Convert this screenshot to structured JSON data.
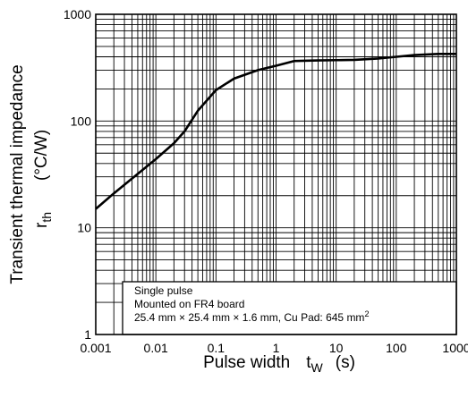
{
  "chart_data": {
    "type": "line",
    "title": "",
    "xscale": "log",
    "yscale": "log",
    "xlim": [
      0.001,
      1000
    ],
    "ylim": [
      1,
      1000
    ],
    "grid": true,
    "xlabel": {
      "main": "Pulse width",
      "symbol": "t",
      "subscript": "W",
      "unit": "(s)"
    },
    "ylabel": {
      "main": "Transient thermal impedance",
      "symbol": "r",
      "subscript": "th",
      "unit": "(°C/W)"
    },
    "x_ticks": [
      {
        "value": 0.001,
        "label": "0.001"
      },
      {
        "value": 0.01,
        "label": "0.01"
      },
      {
        "value": 0.1,
        "label": "0.1"
      },
      {
        "value": 1,
        "label": "1"
      },
      {
        "value": 10,
        "label": "10"
      },
      {
        "value": 100,
        "label": "100"
      },
      {
        "value": 1000,
        "label": "1000"
      }
    ],
    "y_ticks": [
      {
        "value": 1,
        "label": "1"
      },
      {
        "value": 10,
        "label": "10"
      },
      {
        "value": 100,
        "label": "100"
      },
      {
        "value": 1000,
        "label": "1000"
      }
    ],
    "series": [
      {
        "x": [
          0.001,
          0.002,
          0.005,
          0.01,
          0.02,
          0.03,
          0.05,
          0.1,
          0.2,
          0.5,
          1,
          2,
          5,
          10,
          20,
          50,
          100,
          200,
          500,
          1000
        ],
        "y": [
          15,
          21,
          32,
          44,
          62,
          80,
          125,
          195,
          250,
          300,
          330,
          365,
          370,
          372,
          374,
          385,
          400,
          415,
          425,
          425
        ]
      }
    ],
    "annotation": {
      "line1": "Single pulse",
      "line2": "Mounted on FR4 board",
      "line3": "25.4 mm × 25.4 mm × 1.6 mm, Cu Pad: 645 mm",
      "line3_superscript": "2"
    }
  }
}
